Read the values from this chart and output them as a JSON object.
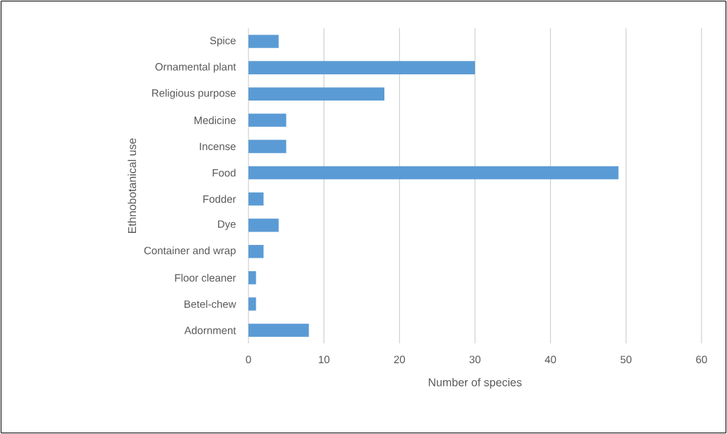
{
  "chart_data": {
    "type": "bar",
    "orientation": "horizontal",
    "xlabel": "Number of species",
    "ylabel": "Ethnobotanical use",
    "categories": [
      "Spice",
      "Ornamental plant",
      "Religious purpose",
      "Medicine",
      "Incense",
      "Food",
      "Fodder",
      "Dye",
      "Container and wrap",
      "Floor cleaner",
      "Betel-chew",
      "Adornment"
    ],
    "values": [
      4,
      30,
      18,
      5,
      5,
      49,
      2,
      4,
      2,
      1,
      1,
      8
    ],
    "color": "#5b9bd5",
    "xlim": [
      0,
      60
    ],
    "xticks": [
      0,
      10,
      20,
      30,
      40,
      50,
      60
    ],
    "grid": "x"
  }
}
